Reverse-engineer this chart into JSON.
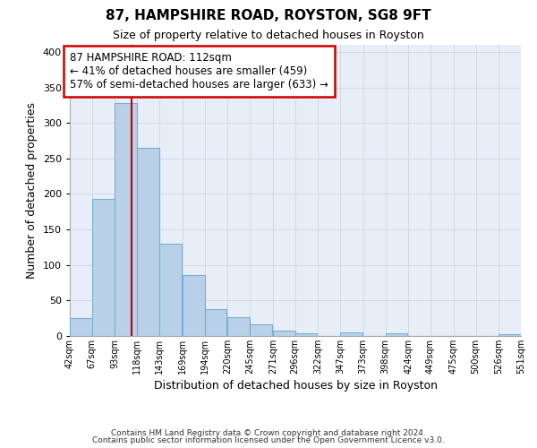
{
  "title": "87, HAMPSHIRE ROAD, ROYSTON, SG8 9FT",
  "subtitle": "Size of property relative to detached houses in Royston",
  "xlabel": "Distribution of detached houses by size in Royston",
  "ylabel": "Number of detached properties",
  "bar_left_edges": [
    42,
    67,
    93,
    118,
    143,
    169,
    194,
    220,
    245,
    271,
    296,
    322,
    347,
    373,
    398,
    424,
    449,
    475,
    500,
    526
  ],
  "bar_heights": [
    25,
    193,
    328,
    265,
    130,
    86,
    38,
    26,
    16,
    8,
    4,
    0,
    5,
    0,
    4,
    0,
    0,
    0,
    0,
    3
  ],
  "bin_width": 25,
  "bar_color": "#b8d0e8",
  "bar_edge_color": "#7aaed0",
  "vline_x": 112,
  "vline_color": "#cc0000",
  "annotation_box_text": "87 HAMPSHIRE ROAD: 112sqm\n← 41% of detached houses are smaller (459)\n57% of semi-detached houses are larger (633) →",
  "annotation_box_fc": "white",
  "annotation_box_ec": "#cc0000",
  "xlim_left": 42,
  "xlim_right": 551,
  "ylim_bottom": 0,
  "ylim_top": 410,
  "yticks": [
    0,
    50,
    100,
    150,
    200,
    250,
    300,
    350,
    400
  ],
  "xtick_labels": [
    "42sqm",
    "67sqm",
    "93sqm",
    "118sqm",
    "143sqm",
    "169sqm",
    "194sqm",
    "220sqm",
    "245sqm",
    "271sqm",
    "296sqm",
    "322sqm",
    "347sqm",
    "373sqm",
    "398sqm",
    "424sqm",
    "449sqm",
    "475sqm",
    "500sqm",
    "526sqm",
    "551sqm"
  ],
  "xtick_positions": [
    42,
    67,
    93,
    118,
    143,
    169,
    194,
    220,
    245,
    271,
    296,
    322,
    347,
    373,
    398,
    424,
    449,
    475,
    500,
    526,
    551
  ],
  "grid_color": "#d0d8e8",
  "background_color": "#ffffff",
  "plot_bg_color": "#e8eef8",
  "footer_line1": "Contains HM Land Registry data © Crown copyright and database right 2024.",
  "footer_line2": "Contains public sector information licensed under the Open Government Licence v3.0."
}
